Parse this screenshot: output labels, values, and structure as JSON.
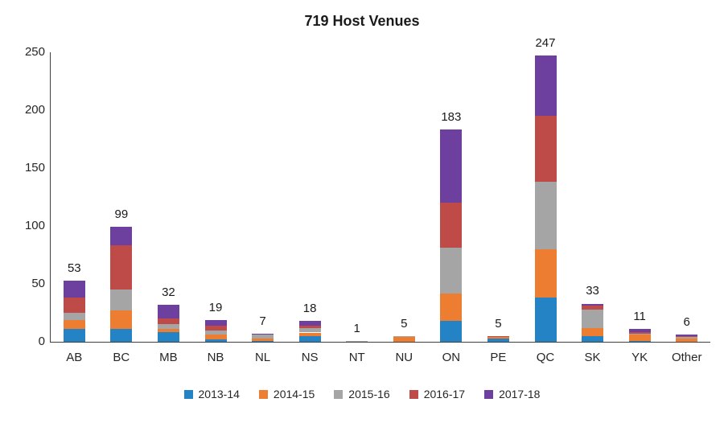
{
  "chart_data": {
    "type": "bar",
    "variant": "stacked",
    "title": "719 Host Venues",
    "categories": [
      "AB",
      "BC",
      "MB",
      "NB",
      "NL",
      "NS",
      "NT",
      "NU",
      "ON",
      "PE",
      "QC",
      "SK",
      "YK",
      "Other"
    ],
    "totals": [
      53,
      99,
      32,
      19,
      7,
      18,
      1,
      5,
      183,
      5,
      247,
      33,
      11,
      6
    ],
    "series": [
      {
        "name": "2013-14",
        "color": "#2383C4",
        "values": [
          11,
          11,
          8,
          2,
          1,
          5,
          0,
          0,
          18,
          3,
          38,
          5,
          1,
          0
        ]
      },
      {
        "name": "2014-15",
        "color": "#ED7D31",
        "values": [
          8,
          16,
          3,
          4,
          2,
          3,
          0,
          4,
          24,
          1,
          42,
          7,
          5,
          3
        ]
      },
      {
        "name": "2015-16",
        "color": "#A5A5A5",
        "values": [
          6,
          18,
          4,
          4,
          3,
          4,
          1,
          1,
          39,
          0,
          58,
          16,
          1,
          1
        ]
      },
      {
        "name": "2016-17",
        "color": "#BE4B48",
        "values": [
          13,
          38,
          5,
          4,
          0,
          2,
          0,
          0,
          39,
          1,
          57,
          3,
          1,
          1
        ]
      },
      {
        "name": "2017-18",
        "color": "#6D3F9E",
        "values": [
          15,
          16,
          12,
          5,
          1,
          4,
          0,
          0,
          63,
          0,
          52,
          2,
          3,
          1
        ]
      }
    ],
    "ylim": [
      0,
      250
    ],
    "yticks": [
      0,
      50,
      100,
      150,
      200,
      250
    ],
    "xlabel": "",
    "ylabel": "",
    "grid": false,
    "legend_position": "bottom"
  }
}
